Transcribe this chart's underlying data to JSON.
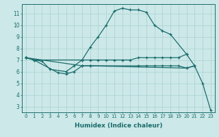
{
  "xlabel": "Humidex (Indice chaleur)",
  "xlim": [
    -0.5,
    23.5
  ],
  "ylim": [
    2.5,
    11.8
  ],
  "yticks": [
    3,
    4,
    5,
    6,
    7,
    8,
    9,
    10,
    11
  ],
  "xticks": [
    0,
    1,
    2,
    3,
    4,
    5,
    6,
    7,
    8,
    9,
    10,
    11,
    12,
    13,
    14,
    15,
    16,
    17,
    18,
    19,
    20,
    21,
    22,
    23
  ],
  "bg_color": "#cce8e8",
  "line_color": "#1a6b6b",
  "grid_color": "#b0d4d4",
  "lines": [
    {
      "x": [
        0,
        1,
        2,
        3,
        5,
        6,
        7,
        8,
        9,
        10,
        11,
        12,
        13,
        14,
        15,
        16,
        17,
        18,
        20
      ],
      "y": [
        7.2,
        7.0,
        6.9,
        6.2,
        6.0,
        6.5,
        7.0,
        8.1,
        9.0,
        10.0,
        11.2,
        11.45,
        11.3,
        11.3,
        11.1,
        10.0,
        9.5,
        9.2,
        7.5
      ]
    },
    {
      "x": [
        0,
        1,
        7,
        8,
        9,
        10,
        11,
        12,
        13,
        14,
        15,
        16,
        17,
        18,
        19,
        20,
        21
      ],
      "y": [
        7.2,
        7.0,
        7.0,
        7.0,
        7.0,
        7.0,
        7.0,
        7.0,
        7.0,
        7.2,
        7.2,
        7.2,
        7.2,
        7.2,
        7.2,
        7.5,
        6.5
      ]
    },
    {
      "x": [
        0,
        1,
        4,
        5,
        6,
        7,
        8,
        14,
        15,
        16,
        17,
        18,
        19,
        20,
        21
      ],
      "y": [
        7.2,
        7.0,
        5.9,
        5.8,
        6.0,
        6.5,
        6.5,
        6.5,
        6.5,
        6.5,
        6.5,
        6.5,
        6.5,
        6.3,
        6.5
      ]
    },
    {
      "x": [
        0,
        7,
        8,
        20,
        21,
        22,
        23
      ],
      "y": [
        7.2,
        6.5,
        6.5,
        6.3,
        6.5,
        5.0,
        2.7
      ]
    }
  ]
}
